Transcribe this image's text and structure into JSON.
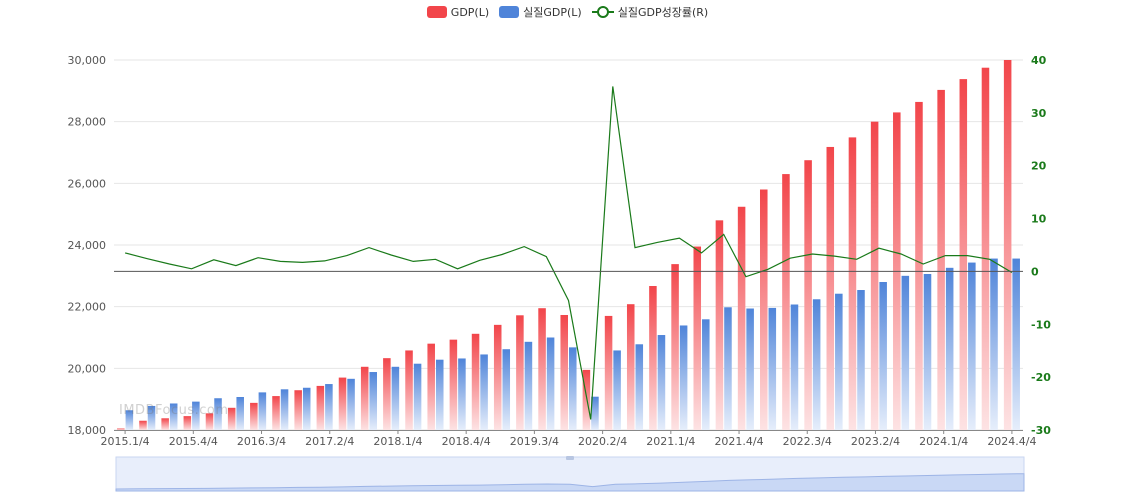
{
  "colors": {
    "gdp_top": "#f2454a",
    "gdp_bottom": "#fde3e4",
    "real_top": "#4f84d9",
    "real_bottom": "#e6eefb",
    "growth": "#1a7a1a",
    "grid": "#e6e6e6",
    "axis_text": "#555555",
    "right_axis_text": "#1a7a1a",
    "slider_bg": "#e8eefb",
    "slider_border": "#c9d6f0"
  },
  "watermark": "IMDBFocus.com",
  "chart_data": {
    "type": "bar",
    "legend": [
      "GDP(L)",
      "실질GDP(L)",
      "실질GDP성장률(R)"
    ],
    "legend_position": "top-center",
    "grid": true,
    "xlabels": [
      "2015.1/4",
      "2015.4/4",
      "2016.3/4",
      "2017.2/4",
      "2018.1/4",
      "2018.4/4",
      "2019.3/4",
      "2020.2/4",
      "2021.1/4",
      "2021.4/4",
      "2022.3/4",
      "2023.2/4",
      "2024.1/4",
      "2024.4/4"
    ],
    "ylim_left": [
      18000,
      30000
    ],
    "yticks_left": [
      "18,000",
      "20,000",
      "22,000",
      "24,000",
      "26,000",
      "28,000",
      "30,000"
    ],
    "ylim_right": [
      -30,
      40
    ],
    "yticks_right": [
      "-30",
      "-20",
      "-10",
      "0",
      "10",
      "20",
      "30",
      "40"
    ],
    "series": [
      {
        "name": "GDP(L)",
        "axis": "left",
        "values": [
          18050,
          18300,
          18380,
          18450,
          18540,
          18720,
          18880,
          19100,
          19290,
          19430,
          19700,
          20050,
          20330,
          20580,
          20800,
          20930,
          21120,
          21410,
          21720,
          21950,
          21730,
          19950,
          21700,
          22080,
          22670,
          23380,
          23950,
          24800,
          25240,
          25800,
          26300,
          26750,
          27180,
          27490,
          28000,
          28300,
          28640,
          29030,
          29380,
          29750,
          30000
        ]
      },
      {
        "name": "실질GDP(L)",
        "axis": "left",
        "values": [
          18640,
          18780,
          18860,
          18920,
          19030,
          19070,
          19220,
          19320,
          19370,
          19490,
          19660,
          19880,
          20050,
          20150,
          20280,
          20320,
          20450,
          20620,
          20860,
          21000,
          20680,
          19080,
          20580,
          20780,
          21080,
          21390,
          21590,
          21980,
          21940,
          21960,
          22070,
          22240,
          22420,
          22540,
          22800,
          23000,
          23060,
          23260,
          23430,
          23560,
          23560
        ]
      },
      {
        "name": "실질GDP성장률(R)",
        "axis": "right",
        "values": [
          3.5,
          2.4,
          1.4,
          0.5,
          2.2,
          1.1,
          2.6,
          1.9,
          1.7,
          2.0,
          3.0,
          4.5,
          3.1,
          1.9,
          2.3,
          0.5,
          2.1,
          3.2,
          4.7,
          2.8,
          -5.5,
          -28.0,
          35.0,
          4.5,
          5.5,
          6.3,
          3.5,
          7.0,
          -1.0,
          0.4,
          2.5,
          3.3,
          2.9,
          2.3,
          4.4,
          3.3,
          1.4,
          3.0,
          3.0,
          2.3,
          -0.2
        ]
      }
    ]
  }
}
